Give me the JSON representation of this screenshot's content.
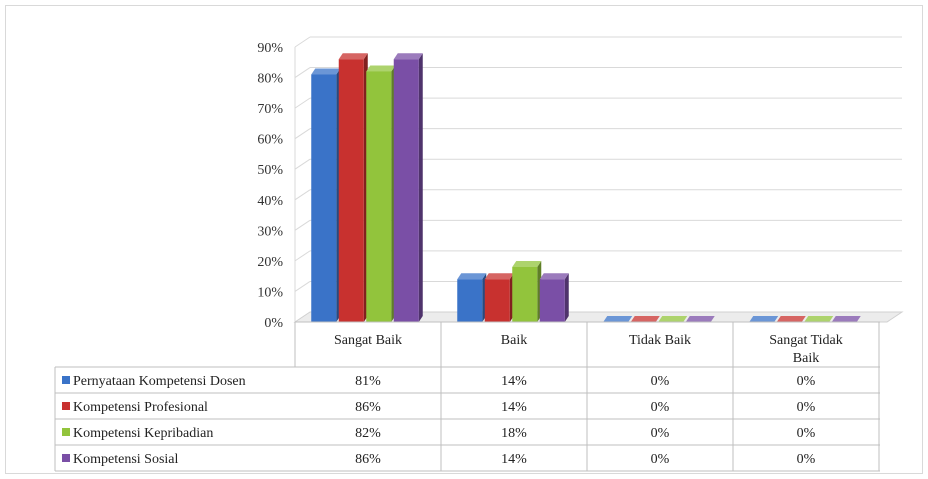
{
  "chart_data": {
    "type": "bar",
    "categories": [
      "Sangat Baik",
      "Baik",
      "Tidak Baik",
      "Sangat Tidak Baik"
    ],
    "category_lines": [
      [
        "Sangat Baik"
      ],
      [
        "Baik"
      ],
      [
        "Tidak Baik"
      ],
      [
        "Sangat Tidak",
        "Baik"
      ]
    ],
    "series": [
      {
        "name": "Pernyataan Kompetensi Dosen",
        "values": [
          81,
          14,
          0,
          0
        ],
        "color": "#3a73c8",
        "labels": [
          "81%",
          "14%",
          "0%",
          "0%"
        ]
      },
      {
        "name": "Kompetensi Profesional",
        "values": [
          86,
          14,
          0,
          0
        ],
        "color": "#c8312f",
        "labels": [
          "86%",
          "14%",
          "0%",
          "0%"
        ]
      },
      {
        "name": "Kompetensi Kepribadian",
        "values": [
          82,
          18,
          0,
          0
        ],
        "color": "#92c43c",
        "labels": [
          "82%",
          "18%",
          "0%",
          "0%"
        ]
      },
      {
        "name": "Kompetensi Sosial",
        "values": [
          86,
          14,
          0,
          0
        ],
        "color": "#7a4fa6",
        "labels": [
          "86%",
          "14%",
          "0%",
          "0%"
        ]
      }
    ],
    "yticks": [
      "0%",
      "10%",
      "20%",
      "30%",
      "40%",
      "50%",
      "60%",
      "70%",
      "80%",
      "90%"
    ],
    "ylim": [
      0,
      90
    ],
    "grid": true,
    "legend": "data-table-left",
    "title": "",
    "xlabel": "",
    "ylabel": ""
  }
}
